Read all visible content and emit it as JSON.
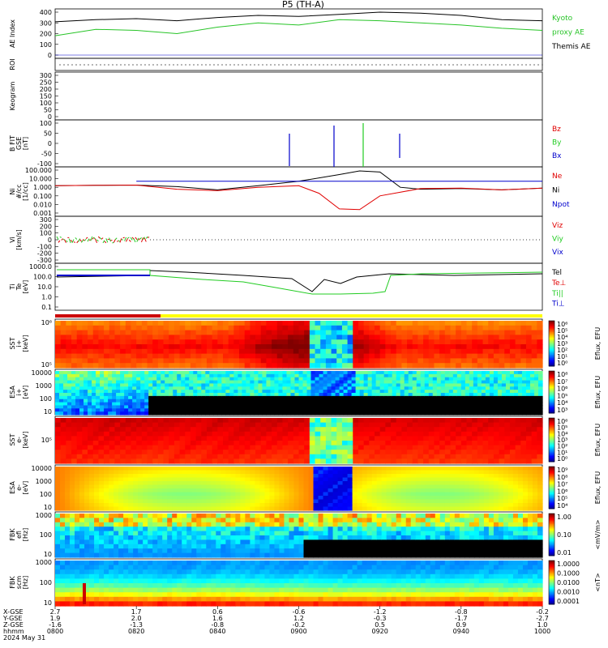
{
  "title": "P5 (TH-A)",
  "colors": {
    "black": "#000000",
    "green": "#22cc22",
    "red": "#e00000",
    "blue": "#0000cc",
    "ae_green": "#27c427"
  },
  "panels": [
    {
      "id": "ae",
      "ylabel": "AE Index",
      "ticks": [
        "400",
        "300",
        "200",
        "100",
        "0"
      ],
      "legend": [
        {
          "text": "Kyoto",
          "color": "#27c427"
        },
        {
          "text": "proxy AE",
          "color": "#27c427"
        },
        {
          "text": "Themis AE",
          "color": "#000000"
        }
      ]
    },
    {
      "id": "roi",
      "ylabel": "ROI",
      "ticks": []
    },
    {
      "id": "keogram",
      "ylabel": "Keogram",
      "ticks": [
        "300",
        "250",
        "200",
        "150",
        "100",
        "50",
        "0"
      ]
    },
    {
      "id": "bfit",
      "ylabel": "B FIT\nGSE\n[nT]",
      "ticks": [
        "100",
        "50",
        "0",
        "-50",
        "-100"
      ],
      "legend": [
        {
          "text": "Bz",
          "color": "#e00000"
        },
        {
          "text": "By",
          "color": "#22cc22"
        },
        {
          "text": "Bx",
          "color": "#0000cc"
        }
      ]
    },
    {
      "id": "ni",
      "ylabel": "Ni\n#/cc\n[1/cc]",
      "ticks": [
        "100.000",
        "10.000",
        "1.000",
        "0.100",
        "0.010",
        "0.001"
      ],
      "legend": [
        {
          "text": "Ne",
          "color": "#e00000"
        },
        {
          "text": "Ni",
          "color": "#000000"
        },
        {
          "text": "Npot",
          "color": "#0000cc"
        }
      ]
    },
    {
      "id": "vi",
      "ylabel": "Vi\n[km/s]",
      "ticks": [
        "300",
        "200",
        "100",
        "0",
        "-100",
        "-200",
        "-300"
      ],
      "legend": [
        {
          "text": "Viz",
          "color": "#e00000"
        },
        {
          "text": "Viy",
          "color": "#22cc22"
        },
        {
          "text": "Vix",
          "color": "#0000cc"
        }
      ]
    },
    {
      "id": "ti",
      "ylabel": "Ti\nTe\n[eV]",
      "ticks": [
        "1000.0",
        "100.0",
        "10.0",
        "1.0",
        "0.1"
      ],
      "legend": [
        {
          "text": "Tel",
          "color": "#000000"
        },
        {
          "text": "Te⊥",
          "color": "#e00000"
        },
        {
          "text": "Ti||",
          "color": "#22cc22"
        },
        {
          "text": "Ti⊥",
          "color": "#0000cc"
        }
      ]
    },
    {
      "id": "sst_i",
      "ylabel": "SST\ni+\n[keV]",
      "ticks": [
        "10⁶",
        "10⁵"
      ],
      "cb_label": "Eflux, EFU",
      "cb_ticks": [
        "10⁶",
        "10⁵",
        "10⁴",
        "10³",
        "10²",
        "10¹",
        "10⁰"
      ]
    },
    {
      "id": "esa_i",
      "ylabel": "ESA\ni+\n[eV]",
      "ticks": [
        "10000",
        "1000",
        "100",
        "10"
      ],
      "cb_label": "Eflux, EFU",
      "cb_ticks": [
        "10⁸",
        "10⁷",
        "10⁶",
        "10⁵",
        "10⁴",
        "10³"
      ]
    },
    {
      "id": "sst_e",
      "ylabel": "SST\ne-\n[keV]",
      "ticks": [
        "10⁵"
      ],
      "cb_label": "Eflux, EFU",
      "cb_ticks": [
        "10⁶",
        "10⁵",
        "10⁴",
        "10³",
        "10²",
        "10¹",
        "10⁰"
      ]
    },
    {
      "id": "esa_e",
      "ylabel": "ESA\ne-\n[eV]",
      "ticks": [
        "10000",
        "1000",
        "100",
        "10"
      ],
      "cb_label": "Eflux, EFU",
      "cb_ticks": [
        "10⁹",
        "10⁸",
        "10⁷",
        "10⁶",
        "10⁵",
        "10⁴"
      ]
    },
    {
      "id": "fbk_e",
      "ylabel": "FBK\nefi\n[Hz]",
      "ticks": [
        "1000",
        "100",
        "10"
      ],
      "cb_label": "<mV/m>",
      "cb_ticks": [
        "1.00",
        "0.10",
        "0.01"
      ]
    },
    {
      "id": "fbk_b",
      "ylabel": "FBK\nscm\n[Hz]",
      "ticks": [
        "1000",
        "100",
        "10"
      ],
      "cb_label": "<nT>",
      "cb_ticks": [
        "1.0000",
        "0.1000",
        "0.0100",
        "0.0010",
        "0.0001"
      ]
    }
  ],
  "footer": {
    "row_labels": [
      "X-GSE",
      "Y-GSE",
      "Z-GSE",
      "hhmm",
      "2024 May 31"
    ],
    "columns": [
      {
        "x": "2.7",
        "y": "1.9",
        "z": "-1.6",
        "t": "0800"
      },
      {
        "x": "1.7",
        "y": "2.0",
        "z": "-1.3",
        "t": "0820"
      },
      {
        "x": "0.6",
        "y": "1.6",
        "z": "-0.8",
        "t": "0840"
      },
      {
        "x": "-0.6",
        "y": "1.2",
        "z": "-0.2",
        "t": "0900"
      },
      {
        "x": "-1.2",
        "y": "-0.3",
        "z": "0.5",
        "t": "0920"
      },
      {
        "x": "-0.8",
        "y": "-1.7",
        "z": "0.9",
        "t": "0940"
      },
      {
        "x": "-0.2",
        "y": "-2.7",
        "z": "1.0",
        "t": "1000"
      }
    ]
  },
  "chart_data": {
    "type": "line",
    "title": "P5 (TH-A)",
    "x_ticks": [
      "0800",
      "0820",
      "0840",
      "0900",
      "0920",
      "0940",
      "1000"
    ],
    "series": [
      {
        "name": "Themis AE",
        "panel": "ae",
        "x": [
          0,
          10,
          20,
          30,
          40,
          50,
          60,
          70,
          80,
          90,
          100,
          110,
          120
        ],
        "values": [
          310,
          330,
          340,
          320,
          350,
          370,
          360,
          380,
          400,
          390,
          370,
          330,
          320
        ]
      },
      {
        "name": "Kyoto proxy AE",
        "panel": "ae",
        "x": [
          0,
          10,
          20,
          30,
          40,
          50,
          60,
          70,
          80,
          90,
          100,
          110,
          120
        ],
        "values": [
          180,
          240,
          230,
          200,
          260,
          300,
          280,
          330,
          320,
          300,
          280,
          250,
          230
        ]
      },
      {
        "name": "Ni",
        "panel": "ni",
        "x": [
          0,
          10,
          20,
          30,
          40,
          50,
          60,
          70,
          75,
          80,
          85,
          90,
          100,
          110,
          120
        ],
        "values": [
          1.5,
          1.7,
          1.8,
          1.2,
          0.5,
          1.5,
          5,
          30,
          80,
          60,
          1,
          0.6,
          0.7,
          0.5,
          0.8
        ]
      },
      {
        "name": "Ne",
        "panel": "ni",
        "x": [
          0,
          10,
          20,
          30,
          40,
          50,
          60,
          65,
          70,
          75,
          80,
          90,
          100,
          110,
          120
        ],
        "values": [
          1.5,
          1.7,
          1.8,
          0.6,
          0.4,
          1.0,
          1.5,
          0.2,
          0.003,
          0.0025,
          0.1,
          0.7,
          0.8,
          0.5,
          0.8
        ]
      },
      {
        "name": "Npot",
        "panel": "ni",
        "x": [
          0,
          18,
          20,
          60,
          80,
          90,
          120
        ],
        "values": [
          null,
          null,
          5,
          5,
          5,
          5,
          5
        ]
      }
    ]
  }
}
